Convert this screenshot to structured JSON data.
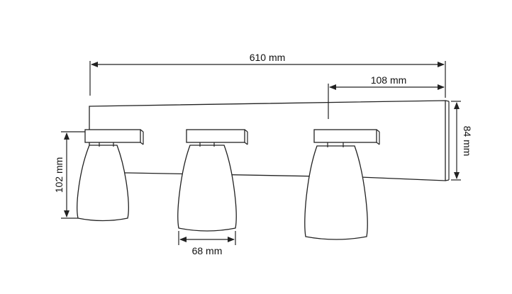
{
  "dimensions": {
    "total_width": "610 mm",
    "spot_offset": "108 mm",
    "plate_height": "84 mm",
    "shade_height": "102 mm",
    "shade_width": "68 mm"
  },
  "colors": {
    "line": "#222222",
    "background": "#ffffff"
  }
}
